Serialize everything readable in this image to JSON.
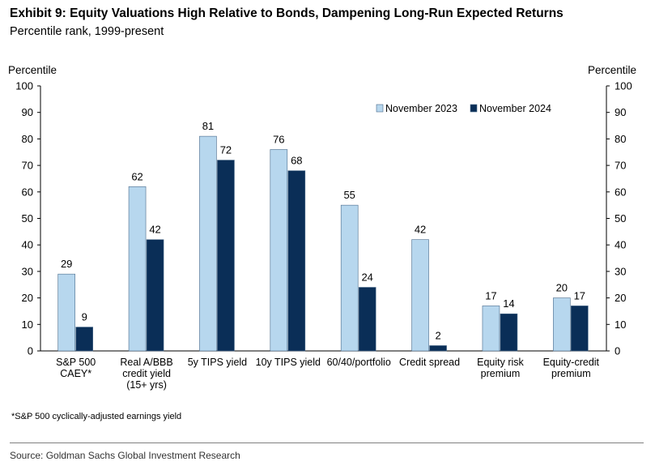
{
  "header": {
    "title": "Exhibit 9: Equity Valuations High Relative to Bonds, Dampening Long-Run Expected Returns",
    "subtitle": "Percentile rank, 1999-present"
  },
  "footnote": "*S&P 500 cyclically-adjusted earnings yield",
  "source": "Source: Goldman Sachs Global Investment Research",
  "colors": {
    "nov2023": "#b7d7ee",
    "nov2024": "#0a2e57",
    "bar_stroke": "#4a6a8a",
    "axis": "#000000"
  },
  "chart_data": {
    "type": "bar",
    "title": "Exhibit 9: Equity Valuations High Relative to Bonds, Dampening Long-Run Expected Returns",
    "subtitle": "Percentile rank, 1999-present",
    "ylabel": "Percentile",
    "y2label": "Percentile",
    "ylim": [
      0,
      100
    ],
    "yticks": [
      0,
      10,
      20,
      30,
      40,
      50,
      60,
      70,
      80,
      90,
      100
    ],
    "categories": [
      [
        "S&P 500",
        "CAEY*"
      ],
      [
        "Real A/BBB",
        "credit yield",
        "(15+ yrs)"
      ],
      [
        "5y TIPS yield"
      ],
      [
        "10y TIPS yield"
      ],
      [
        "60/40/portfolio"
      ],
      [
        "Credit spread"
      ],
      [
        "Equity risk",
        "premium"
      ],
      [
        "Equity-credit",
        "premium"
      ]
    ],
    "series": [
      {
        "name": "November 2023",
        "values": [
          29,
          62,
          81,
          76,
          55,
          42,
          17,
          20
        ]
      },
      {
        "name": "November 2024",
        "values": [
          9,
          42,
          72,
          68,
          24,
          2,
          14,
          17
        ]
      }
    ],
    "legend": "top-right",
    "grid": false,
    "data_labels": true
  }
}
